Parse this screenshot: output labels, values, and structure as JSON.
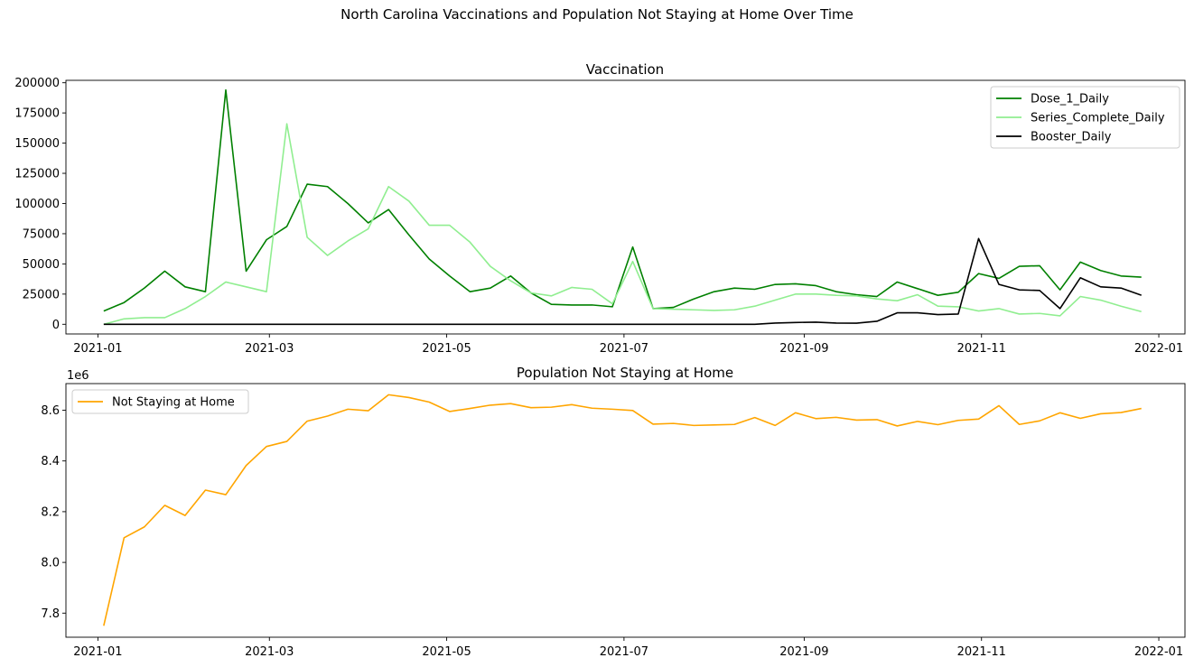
{
  "figure": {
    "title": "North Carolina Vaccinations and Population Not Staying at Home Over Time"
  },
  "chart_data": [
    {
      "type": "line",
      "title": "Vaccination",
      "xlabel": "",
      "ylabel": "",
      "x_axis": "date",
      "xlim": [
        "2020-12-21",
        "2022-01-10"
      ],
      "ylim": [
        -8000,
        202000
      ],
      "x_ticks": [
        "2021-01",
        "2021-03",
        "2021-05",
        "2021-07",
        "2021-09",
        "2021-11",
        "2022-01"
      ],
      "x_tick_dates": [
        "2021-01-01",
        "2021-03-01",
        "2021-05-01",
        "2021-07-01",
        "2021-09-01",
        "2021-11-01",
        "2022-01-01"
      ],
      "y_ticks": [
        0,
        25000,
        50000,
        75000,
        100000,
        125000,
        150000,
        175000,
        200000
      ],
      "legend": {
        "position": "upper-right"
      },
      "grid": false,
      "x": [
        "2021-01-03",
        "2021-01-10",
        "2021-01-17",
        "2021-01-24",
        "2021-01-31",
        "2021-02-07",
        "2021-02-14",
        "2021-02-21",
        "2021-02-28",
        "2021-03-07",
        "2021-03-14",
        "2021-03-21",
        "2021-03-28",
        "2021-04-04",
        "2021-04-11",
        "2021-04-18",
        "2021-04-25",
        "2021-05-02",
        "2021-05-09",
        "2021-05-16",
        "2021-05-23",
        "2021-05-30",
        "2021-06-06",
        "2021-06-13",
        "2021-06-20",
        "2021-06-27",
        "2021-07-04",
        "2021-07-11",
        "2021-07-18",
        "2021-07-25",
        "2021-08-01",
        "2021-08-08",
        "2021-08-15",
        "2021-08-22",
        "2021-08-29",
        "2021-09-05",
        "2021-09-12",
        "2021-09-19",
        "2021-09-26",
        "2021-10-03",
        "2021-10-10",
        "2021-10-17",
        "2021-10-24",
        "2021-10-31",
        "2021-11-07",
        "2021-11-14",
        "2021-11-21",
        "2021-11-28",
        "2021-12-05",
        "2021-12-12",
        "2021-12-19",
        "2021-12-26"
      ],
      "series": [
        {
          "name": "Dose_1_Daily",
          "color": "#008000",
          "values": [
            11000,
            18000,
            30000,
            44000,
            31000,
            27000,
            194000,
            44000,
            70000,
            81000,
            116000,
            114000,
            100000,
            84000,
            95000,
            74000,
            54000,
            40000,
            27000,
            30000,
            40000,
            26000,
            16500,
            16000,
            16000,
            14500,
            64000,
            13000,
            14000,
            21000,
            27000,
            30000,
            29000,
            33000,
            33500,
            32000,
            27000,
            24500,
            23000,
            35000,
            29500,
            24000,
            26500,
            42000,
            38000,
            48000,
            48500,
            28500,
            51500,
            44500,
            40000,
            39000
          ]
        },
        {
          "name": "Series_Complete_Daily",
          "color": "#90ee90",
          "values": [
            0,
            4500,
            5500,
            5500,
            13000,
            23000,
            35000,
            31000,
            27000,
            166000,
            72000,
            57000,
            69000,
            79000,
            114000,
            102000,
            82000,
            82000,
            68000,
            48000,
            36000,
            26000,
            23500,
            30500,
            29000,
            17000,
            52000,
            13000,
            12500,
            12000,
            11500,
            12000,
            15000,
            20000,
            25000,
            25000,
            24000,
            23500,
            21000,
            19500,
            24500,
            15000,
            14500,
            11000,
            13000,
            8500,
            9000,
            7000,
            23000,
            20000,
            15000,
            10500
          ]
        },
        {
          "name": "Booster_Daily",
          "color": "#000000",
          "values": [
            0,
            0,
            0,
            0,
            0,
            0,
            0,
            0,
            0,
            0,
            0,
            0,
            0,
            0,
            0,
            0,
            0,
            0,
            0,
            0,
            0,
            0,
            0,
            0,
            0,
            0,
            0,
            0,
            0,
            0,
            0,
            0,
            0,
            1000,
            1500,
            1800,
            1000,
            900,
            2500,
            9500,
            9500,
            8000,
            8500,
            71000,
            33000,
            28500,
            28000,
            13000,
            38500,
            31000,
            30000,
            24000
          ]
        }
      ]
    },
    {
      "type": "line",
      "title": "Population Not Staying at Home",
      "xlabel": "",
      "ylabel": "",
      "x_axis": "date",
      "offset_label": "1e6",
      "scale": 1000000,
      "xlim": [
        "2020-12-21",
        "2022-01-10"
      ],
      "ylim": [
        7.705,
        8.705
      ],
      "x_ticks": [
        "2021-01",
        "2021-03",
        "2021-05",
        "2021-07",
        "2021-09",
        "2021-11",
        "2022-01"
      ],
      "x_tick_dates": [
        "2021-01-01",
        "2021-03-01",
        "2021-05-01",
        "2021-07-01",
        "2021-09-01",
        "2021-11-01",
        "2022-01-01"
      ],
      "y_ticks": [
        "7.8",
        "8.0",
        "8.2",
        "8.4",
        "8.6"
      ],
      "legend": {
        "position": "upper-left"
      },
      "grid": false,
      "x": [
        "2021-01-03",
        "2021-01-10",
        "2021-01-17",
        "2021-01-24",
        "2021-01-31",
        "2021-02-07",
        "2021-02-14",
        "2021-02-21",
        "2021-02-28",
        "2021-03-07",
        "2021-03-14",
        "2021-03-21",
        "2021-03-28",
        "2021-04-04",
        "2021-04-11",
        "2021-04-18",
        "2021-04-25",
        "2021-05-02",
        "2021-05-09",
        "2021-05-16",
        "2021-05-23",
        "2021-05-30",
        "2021-06-06",
        "2021-06-13",
        "2021-06-20",
        "2021-06-27",
        "2021-07-04",
        "2021-07-11",
        "2021-07-18",
        "2021-07-25",
        "2021-08-01",
        "2021-08-08",
        "2021-08-15",
        "2021-08-22",
        "2021-08-29",
        "2021-09-05",
        "2021-09-12",
        "2021-09-19",
        "2021-09-26",
        "2021-10-03",
        "2021-10-10",
        "2021-10-17",
        "2021-10-24",
        "2021-10-31",
        "2021-11-07",
        "2021-11-14",
        "2021-11-21",
        "2021-11-28",
        "2021-12-05",
        "2021-12-12",
        "2021-12-19",
        "2021-12-26"
      ],
      "series": [
        {
          "name": "Not Staying at Home",
          "color": "#ffa500",
          "values": [
            7.75,
            8.097,
            8.14,
            8.225,
            8.185,
            8.285,
            8.267,
            8.382,
            8.457,
            8.477,
            8.557,
            8.577,
            8.604,
            8.598,
            8.661,
            8.65,
            8.632,
            8.595,
            8.607,
            8.62,
            8.626,
            8.61,
            8.612,
            8.622,
            8.608,
            8.604,
            8.599,
            8.545,
            8.548,
            8.54,
            8.542,
            8.544,
            8.571,
            8.54,
            8.59,
            8.567,
            8.572,
            8.561,
            8.563,
            8.538,
            8.556,
            8.543,
            8.56,
            8.565,
            8.618,
            8.544,
            8.558,
            8.59,
            8.568,
            8.586,
            8.591,
            8.607
          ]
        }
      ]
    }
  ]
}
